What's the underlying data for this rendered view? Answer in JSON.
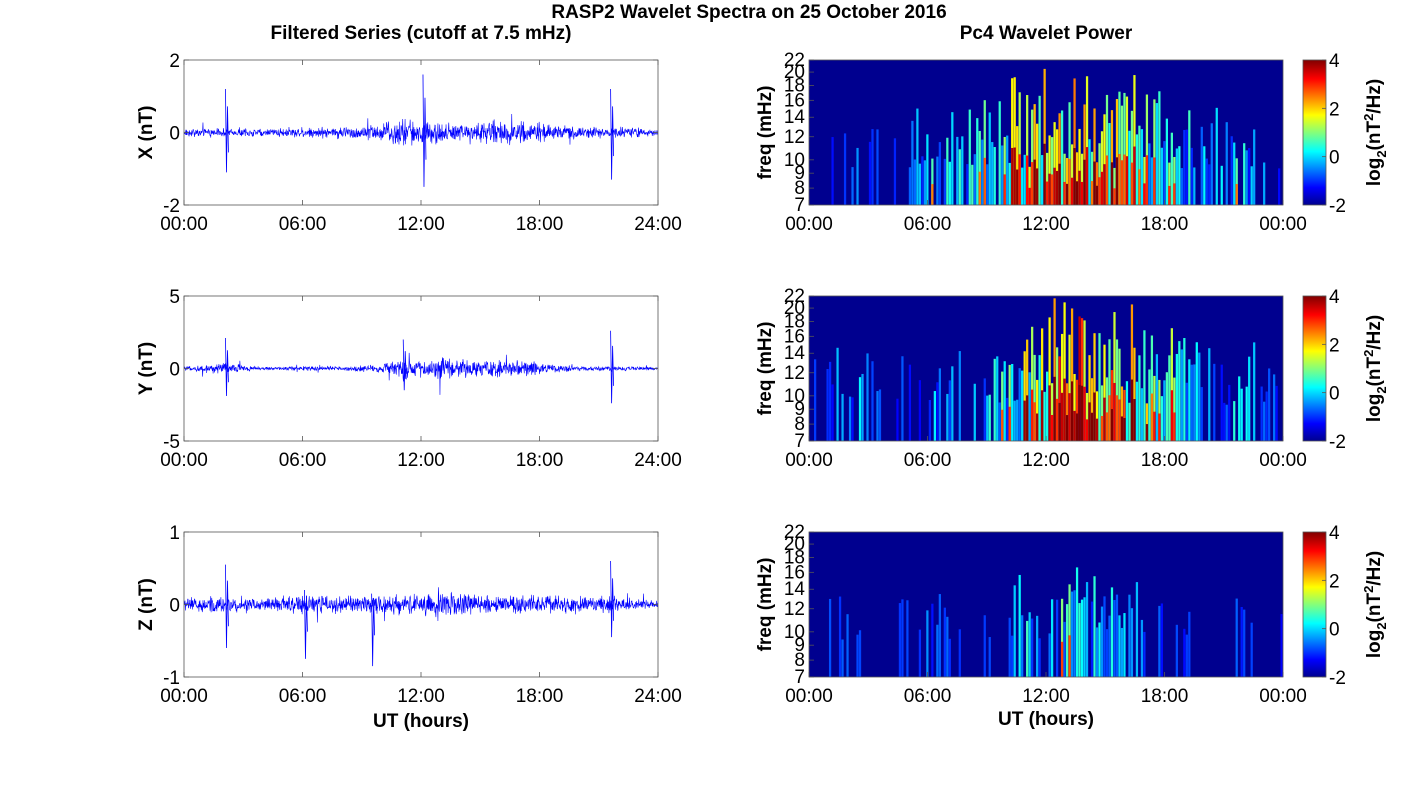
{
  "figure": {
    "title": "RASP2 Wavelet Spectra on 25 October 2016",
    "left_column_title": "Filtered Series (cutoff at 7.5 mHz)",
    "right_column_title": "Pc4 Wavelet Power"
  },
  "colors": {
    "trace": "#0000ff",
    "jet_stops": [
      "#00008f",
      "#0000ff",
      "#00ffff",
      "#ffff00",
      "#ff0000",
      "#800000"
    ]
  },
  "chart_data": [
    {
      "type": "line",
      "ylabel": "X (nT)",
      "xlabel": "",
      "ylim": [
        -2,
        2
      ],
      "yticks": [
        "-2",
        "0",
        "2"
      ],
      "xlim": [
        "00:00",
        "24:00"
      ],
      "xticks": [
        "00:00",
        "06:00",
        "12:00",
        "18:00",
        "24:00"
      ],
      "series": [
        {
          "envelope_hours": [
            0,
            2,
            4,
            6,
            8,
            10,
            11,
            12,
            13,
            14,
            16,
            18,
            20,
            22,
            24
          ],
          "envelope_nT": [
            0.1,
            0.12,
            0.1,
            0.15,
            0.15,
            0.25,
            0.4,
            0.35,
            0.3,
            0.25,
            0.35,
            0.25,
            0.15,
            0.15,
            0.1
          ],
          "spikes": [
            {
              "hour": 2.1,
              "max": 1.2,
              "min": -1.1
            },
            {
              "hour": 12.1,
              "max": 1.6,
              "min": -1.5
            },
            {
              "hour": 21.6,
              "max": 1.2,
              "min": -1.3
            }
          ]
        }
      ]
    },
    {
      "type": "heatmap",
      "ylabel": "freq (mHz)",
      "xlabel": "",
      "yticks": [
        "7",
        "8",
        "9",
        "10",
        "12",
        "14",
        "16",
        "18",
        "20",
        "22"
      ],
      "xticks": [
        "00:00",
        "06:00",
        "12:00",
        "18:00",
        "00:00"
      ],
      "colorbar": {
        "label": "log2(nT²/Hz)",
        "ticks": [
          "-2",
          "0",
          "2",
          "4"
        ],
        "range": [
          -2,
          4
        ]
      },
      "activity_hours": [
        0,
        2,
        4,
        6,
        8,
        10,
        12,
        13,
        14,
        16,
        18,
        20,
        22,
        24
      ],
      "activity_level": [
        -2,
        -1,
        -2,
        0,
        0,
        1,
        2,
        2.5,
        2,
        2,
        1,
        0,
        0,
        -2
      ]
    },
    {
      "type": "line",
      "ylabel": "Y (nT)",
      "xlabel": "",
      "ylim": [
        -5,
        5
      ],
      "yticks": [
        "-5",
        "0",
        "5"
      ],
      "xlim": [
        "00:00",
        "24:00"
      ],
      "xticks": [
        "00:00",
        "06:00",
        "12:00",
        "18:00",
        "24:00"
      ],
      "series": [
        {
          "envelope_hours": [
            0,
            2,
            4,
            6,
            8,
            10,
            11,
            12,
            13,
            14,
            16,
            18,
            20,
            22,
            24
          ],
          "envelope_nT": [
            0.1,
            0.4,
            0.1,
            0.15,
            0.15,
            0.3,
            0.6,
            0.6,
            0.8,
            0.6,
            0.6,
            0.4,
            0.15,
            0.15,
            0.1
          ],
          "spikes": [
            {
              "hour": 2.1,
              "max": 2.1,
              "min": -1.9
            },
            {
              "hour": 11.1,
              "max": 2.0,
              "min": -1.5
            },
            {
              "hour": 21.6,
              "max": 2.6,
              "min": -2.4
            }
          ]
        }
      ]
    },
    {
      "type": "heatmap",
      "ylabel": "freq (mHz)",
      "xlabel": "",
      "yticks": [
        "7",
        "8",
        "9",
        "10",
        "12",
        "14",
        "16",
        "18",
        "20",
        "22"
      ],
      "xticks": [
        "00:00",
        "06:00",
        "12:00",
        "18:00",
        "00:00"
      ],
      "colorbar": {
        "label": "log2(nT²/Hz)",
        "ticks": [
          "-2",
          "0",
          "2",
          "4"
        ],
        "range": [
          -2,
          4
        ]
      },
      "activity_hours": [
        0,
        2,
        4,
        6,
        8,
        10,
        12,
        13,
        14,
        16,
        18,
        20,
        22,
        24
      ],
      "activity_level": [
        -2,
        0,
        -2,
        -0.5,
        -1,
        0.5,
        2.5,
        3.5,
        3,
        2.5,
        1.5,
        -1,
        0.5,
        -2
      ]
    },
    {
      "type": "line",
      "ylabel": "Z (nT)",
      "xlabel": "UT (hours)",
      "ylim": [
        -1,
        1
      ],
      "yticks": [
        "-1",
        "0",
        "1"
      ],
      "xlim": [
        "00:00",
        "24:00"
      ],
      "xticks": [
        "00:00",
        "06:00",
        "12:00",
        "18:00",
        "24:00"
      ],
      "series": [
        {
          "envelope_hours": [
            0,
            2,
            4,
            6,
            8,
            10,
            12,
            13,
            14,
            16,
            18,
            20,
            22,
            24
          ],
          "envelope_nT": [
            0.1,
            0.12,
            0.1,
            0.12,
            0.12,
            0.12,
            0.15,
            0.2,
            0.15,
            0.12,
            0.12,
            0.12,
            0.1,
            0.05
          ],
          "spikes": [
            {
              "hour": 2.1,
              "max": 0.55,
              "min": -0.6
            },
            {
              "hour": 6.1,
              "max": 0.2,
              "min": -0.75
            },
            {
              "hour": 9.5,
              "max": 0.15,
              "min": -0.85
            },
            {
              "hour": 21.6,
              "max": 0.6,
              "min": -0.45
            }
          ]
        }
      ]
    },
    {
      "type": "heatmap",
      "ylabel": "freq (mHz)",
      "xlabel": "UT (hours)",
      "yticks": [
        "7",
        "8",
        "9",
        "10",
        "12",
        "14",
        "16",
        "18",
        "20",
        "22"
      ],
      "xticks": [
        "00:00",
        "06:00",
        "12:00",
        "18:00",
        "00:00"
      ],
      "colorbar": {
        "label": "log2(nT²/Hz)",
        "ticks": [
          "-2",
          "0",
          "2",
          "4"
        ],
        "range": [
          -2,
          4
        ]
      },
      "activity_hours": [
        0,
        2,
        4,
        6,
        8,
        10,
        11,
        12,
        13,
        14,
        16,
        18,
        20,
        22,
        24
      ],
      "activity_level": [
        -2,
        -1.5,
        -2,
        -1,
        -2,
        -1.5,
        0,
        -1,
        1,
        0,
        -0.5,
        -1.5,
        -2,
        -1.5,
        -2
      ]
    }
  ]
}
